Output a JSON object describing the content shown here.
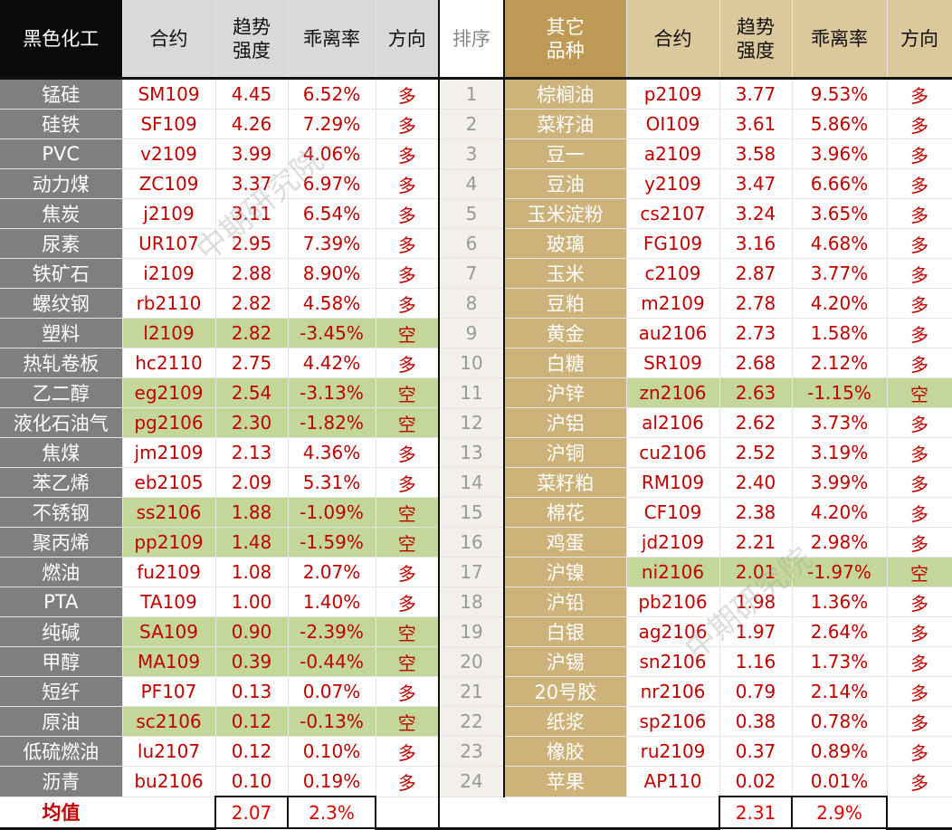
{
  "headers": {
    "left_group": "黑色化工",
    "contract": "合约",
    "strength": "趋势强度",
    "deviation": "乖离率",
    "direction": "方向",
    "rank": "排序",
    "right_group": "其它品种"
  },
  "rows": [
    {
      "l": [
        "锰硅",
        "SM109",
        "4.45",
        "6.52%",
        "多"
      ],
      "rank": "1",
      "r": [
        "棕榈油",
        "p2109",
        "3.77",
        "9.53%",
        "多"
      ]
    },
    {
      "l": [
        "硅铁",
        "SF109",
        "4.26",
        "7.29%",
        "多"
      ],
      "rank": "2",
      "r": [
        "菜籽油",
        "OI109",
        "3.61",
        "5.86%",
        "多"
      ]
    },
    {
      "l": [
        "PVC",
        "v2109",
        "3.99",
        "4.06%",
        "多"
      ],
      "rank": "3",
      "r": [
        "豆一",
        "a2109",
        "3.58",
        "3.96%",
        "多"
      ]
    },
    {
      "l": [
        "动力煤",
        "ZC109",
        "3.37",
        "6.97%",
        "多"
      ],
      "rank": "4",
      "r": [
        "豆油",
        "y2109",
        "3.47",
        "6.66%",
        "多"
      ]
    },
    {
      "l": [
        "焦炭",
        "j2109",
        "3.11",
        "6.54%",
        "多"
      ],
      "rank": "5",
      "r": [
        "玉米淀粉",
        "cs2107",
        "3.24",
        "3.65%",
        "多"
      ]
    },
    {
      "l": [
        "尿素",
        "UR107",
        "2.95",
        "7.39%",
        "多"
      ],
      "rank": "6",
      "r": [
        "玻璃",
        "FG109",
        "3.16",
        "4.68%",
        "多"
      ]
    },
    {
      "l": [
        "铁矿石",
        "i2109",
        "2.88",
        "8.90%",
        "多"
      ],
      "rank": "7",
      "r": [
        "玉米",
        "c2109",
        "2.87",
        "3.77%",
        "多"
      ]
    },
    {
      "l": [
        "螺纹钢",
        "rb2110",
        "2.82",
        "4.58%",
        "多"
      ],
      "rank": "8",
      "r": [
        "豆粕",
        "m2109",
        "2.78",
        "4.20%",
        "多"
      ]
    },
    {
      "l": [
        "塑料",
        "l2109",
        "2.82",
        "-3.45%",
        "空"
      ],
      "rank": "9",
      "r": [
        "黄金",
        "au2106",
        "2.73",
        "1.58%",
        "多"
      ]
    },
    {
      "l": [
        "热轧卷板",
        "hc2110",
        "2.75",
        "4.42%",
        "多"
      ],
      "rank": "10",
      "r": [
        "白糖",
        "SR109",
        "2.68",
        "2.12%",
        "多"
      ]
    },
    {
      "l": [
        "乙二醇",
        "eg2109",
        "2.54",
        "-3.13%",
        "空"
      ],
      "rank": "11",
      "r": [
        "沪锌",
        "zn2106",
        "2.63",
        "-1.15%",
        "空"
      ]
    },
    {
      "l": [
        "液化石油气",
        "pg2106",
        "2.30",
        "-1.82%",
        "空"
      ],
      "rank": "12",
      "r": [
        "沪铝",
        "al2106",
        "2.62",
        "3.73%",
        "多"
      ]
    },
    {
      "l": [
        "焦煤",
        "jm2109",
        "2.13",
        "4.36%",
        "多"
      ],
      "rank": "13",
      "r": [
        "沪铜",
        "cu2106",
        "2.52",
        "3.19%",
        "多"
      ]
    },
    {
      "l": [
        "苯乙烯",
        "eb2105",
        "2.09",
        "5.31%",
        "多"
      ],
      "rank": "14",
      "r": [
        "菜籽粕",
        "RM109",
        "2.40",
        "3.99%",
        "多"
      ]
    },
    {
      "l": [
        "不锈钢",
        "ss2106",
        "1.88",
        "-1.09%",
        "空"
      ],
      "rank": "15",
      "r": [
        "棉花",
        "CF109",
        "2.38",
        "4.20%",
        "多"
      ]
    },
    {
      "l": [
        "聚丙烯",
        "pp2109",
        "1.48",
        "-1.59%",
        "空"
      ],
      "rank": "16",
      "r": [
        "鸡蛋",
        "jd2109",
        "2.21",
        "2.98%",
        "多"
      ]
    },
    {
      "l": [
        "燃油",
        "fu2109",
        "1.08",
        "2.07%",
        "多"
      ],
      "rank": "17",
      "r": [
        "沪镍",
        "ni2106",
        "2.01",
        "-1.97%",
        "空"
      ]
    },
    {
      "l": [
        "PTA",
        "TA109",
        "1.00",
        "1.40%",
        "多"
      ],
      "rank": "18",
      "r": [
        "沪铅",
        "pb2106",
        "1.98",
        "1.36%",
        "多"
      ]
    },
    {
      "l": [
        "纯碱",
        "SA109",
        "0.90",
        "-2.39%",
        "空"
      ],
      "rank": "19",
      "r": [
        "白银",
        "ag2106",
        "1.97",
        "2.64%",
        "多"
      ]
    },
    {
      "l": [
        "甲醇",
        "MA109",
        "0.39",
        "-0.44%",
        "空"
      ],
      "rank": "20",
      "r": [
        "沪锡",
        "sn2106",
        "1.16",
        "1.73%",
        "多"
      ]
    },
    {
      "l": [
        "短纤",
        "PF107",
        "0.13",
        "0.07%",
        "多"
      ],
      "rank": "21",
      "r": [
        "20号胶",
        "nr2106",
        "0.79",
        "2.14%",
        "多"
      ]
    },
    {
      "l": [
        "原油",
        "sc2106",
        "0.12",
        "-0.13%",
        "空"
      ],
      "rank": "22",
      "r": [
        "纸浆",
        "sp2106",
        "0.38",
        "0.78%",
        "多"
      ]
    },
    {
      "l": [
        "低硫燃油",
        "lu2107",
        "0.12",
        "0.10%",
        "多"
      ],
      "rank": "23",
      "r": [
        "橡胶",
        "ru2109",
        "0.37",
        "0.89%",
        "多"
      ]
    },
    {
      "l": [
        "沥青",
        "bu2106",
        "0.10",
        "0.19%",
        "多"
      ],
      "rank": "24",
      "r": [
        "苹果",
        "AP110",
        "0.02",
        "0.01%",
        "多"
      ]
    }
  ],
  "average": {
    "label": "均值",
    "left_strength": "2.07",
    "left_deviation": "2.3%",
    "right_strength": "2.31",
    "right_deviation": "2.9%"
  },
  "watermark": "中期研究院"
}
